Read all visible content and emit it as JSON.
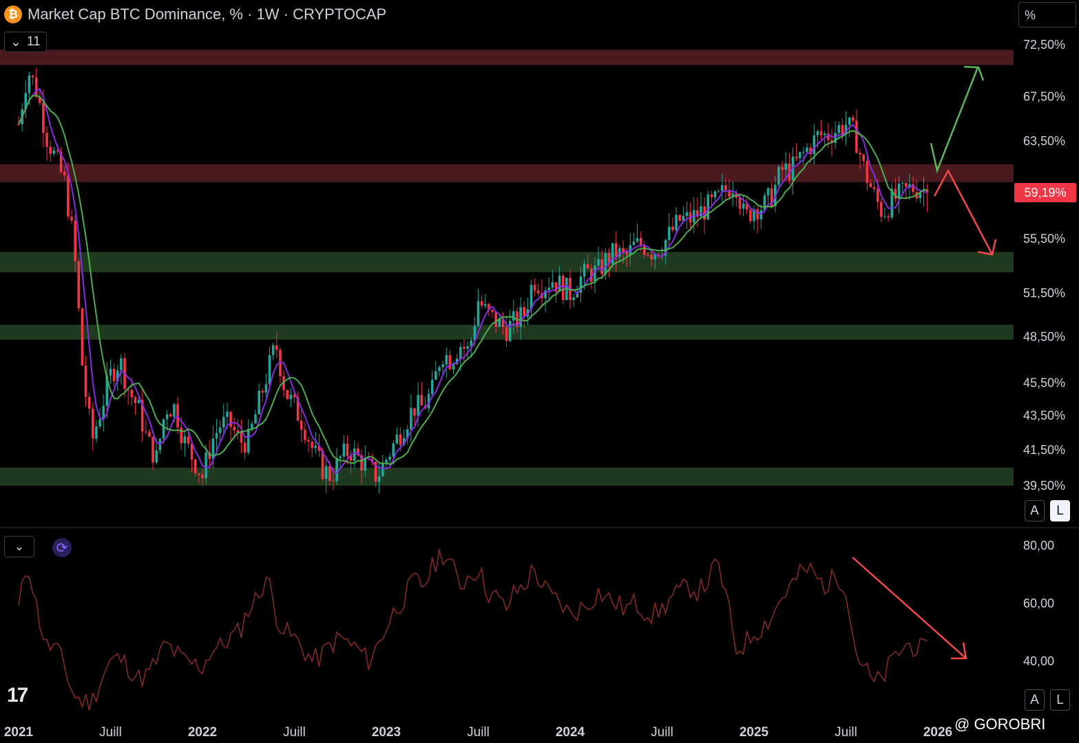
{
  "header": {
    "title": "Market Cap BTC Dominance, % · 1W · CRYPTOCAP",
    "btc_symbol": "₿",
    "indicator_count": "11",
    "scale_mode": "%"
  },
  "price_label": "59,19%",
  "scale_buttons": {
    "auto": "A",
    "log": "L"
  },
  "watermark": "@ GOROBRI",
  "colors": {
    "bull": "#26a69a",
    "bear": "#f23645",
    "ma_fast": "#8a2be2",
    "ma_slow": "#4caf50",
    "resistance_zone": "#4a1a1e",
    "support_zone": "#1f3a1f",
    "rsi_line": "#8b2a2a"
  },
  "chart_data": [
    {
      "type": "candlestick",
      "title": "Market Cap BTC Dominance, % · 1W · CRYPTOCAP",
      "x_range": [
        "2021-01",
        "2026-01"
      ],
      "y_axis_ticks": [
        "72,50%",
        "67,50%",
        "63,50%",
        "55,50%",
        "51,50%",
        "48,50%",
        "45,50%",
        "43,50%",
        "41,50%",
        "39,50%"
      ],
      "y_axis_values": [
        72.5,
        67.5,
        63.5,
        55.5,
        51.5,
        48.5,
        45.5,
        43.5,
        41.5,
        39.5
      ],
      "x_axis_ticks": [
        {
          "label": "2021",
          "year": true,
          "t": 2021.0
        },
        {
          "label": "Juill",
          "year": false,
          "t": 2021.5
        },
        {
          "label": "2022",
          "year": true,
          "t": 2022.0
        },
        {
          "label": "Juill",
          "year": false,
          "t": 2022.5
        },
        {
          "label": "2023",
          "year": true,
          "t": 2023.0
        },
        {
          "label": "Juill",
          "year": false,
          "t": 2023.5
        },
        {
          "label": "2024",
          "year": true,
          "t": 2024.0
        },
        {
          "label": "Juill",
          "year": false,
          "t": 2024.5
        },
        {
          "label": "2025",
          "year": true,
          "t": 2025.0
        },
        {
          "label": "Juill",
          "year": false,
          "t": 2025.5
        },
        {
          "label": "2026",
          "year": true,
          "t": 2026.0
        }
      ],
      "last_value": 59.19,
      "close_path": [
        [
          2021.0,
          65
        ],
        [
          2021.05,
          70
        ],
        [
          2021.1,
          68
        ],
        [
          2021.15,
          64
        ],
        [
          2021.2,
          62
        ],
        [
          2021.25,
          60
        ],
        [
          2021.3,
          55
        ],
        [
          2021.35,
          46
        ],
        [
          2021.4,
          42
        ],
        [
          2021.45,
          44
        ],
        [
          2021.5,
          46
        ],
        [
          2021.55,
          47
        ],
        [
          2021.6,
          45
        ],
        [
          2021.65,
          44
        ],
        [
          2021.7,
          42
        ],
        [
          2021.75,
          41
        ],
        [
          2021.8,
          44
        ],
        [
          2021.85,
          44
        ],
        [
          2021.9,
          42
        ],
        [
          2021.95,
          41
        ],
        [
          2022.0,
          40
        ],
        [
          2022.05,
          42
        ],
        [
          2022.1,
          43
        ],
        [
          2022.15,
          43
        ],
        [
          2022.2,
          42
        ],
        [
          2022.25,
          42
        ],
        [
          2022.3,
          44
        ],
        [
          2022.35,
          46
        ],
        [
          2022.4,
          48
        ],
        [
          2022.45,
          45
        ],
        [
          2022.5,
          44
        ],
        [
          2022.55,
          43
        ],
        [
          2022.6,
          41.5
        ],
        [
          2022.65,
          40.5
        ],
        [
          2022.7,
          40
        ],
        [
          2022.75,
          41
        ],
        [
          2022.8,
          41.5
        ],
        [
          2022.85,
          41
        ],
        [
          2022.9,
          40.5
        ],
        [
          2022.95,
          40
        ],
        [
          2023.0,
          41
        ],
        [
          2023.05,
          42
        ],
        [
          2023.1,
          43
        ],
        [
          2023.15,
          44
        ],
        [
          2023.2,
          44
        ],
        [
          2023.25,
          45
        ],
        [
          2023.3,
          47.5
        ],
        [
          2023.35,
          47
        ],
        [
          2023.4,
          48
        ],
        [
          2023.45,
          47.5
        ],
        [
          2023.5,
          51
        ],
        [
          2023.55,
          50
        ],
        [
          2023.6,
          49.5
        ],
        [
          2023.65,
          49
        ],
        [
          2023.7,
          49.5
        ],
        [
          2023.75,
          50
        ],
        [
          2023.8,
          52.5
        ],
        [
          2023.85,
          52
        ],
        [
          2023.9,
          52.5
        ],
        [
          2023.95,
          52
        ],
        [
          2024.0,
          51.5
        ],
        [
          2024.05,
          52.5
        ],
        [
          2024.1,
          53
        ],
        [
          2024.15,
          53
        ],
        [
          2024.2,
          54
        ],
        [
          2024.25,
          54.5
        ],
        [
          2024.3,
          54
        ],
        [
          2024.35,
          55
        ],
        [
          2024.4,
          55
        ],
        [
          2024.45,
          54.5
        ],
        [
          2024.5,
          55
        ],
        [
          2024.55,
          56
        ],
        [
          2024.6,
          57
        ],
        [
          2024.65,
          57
        ],
        [
          2024.7,
          57.5
        ],
        [
          2024.75,
          58
        ],
        [
          2024.8,
          58.5
        ],
        [
          2024.85,
          59.5
        ],
        [
          2024.9,
          60
        ],
        [
          2024.95,
          57
        ],
        [
          2025.0,
          58
        ],
        [
          2025.05,
          58
        ],
        [
          2025.1,
          59
        ],
        [
          2025.15,
          61
        ],
        [
          2025.2,
          61
        ],
        [
          2025.25,
          62
        ],
        [
          2025.3,
          63
        ],
        [
          2025.35,
          64
        ],
        [
          2025.4,
          64
        ],
        [
          2025.45,
          64.5
        ],
        [
          2025.5,
          65
        ],
        [
          2025.55,
          64
        ],
        [
          2025.6,
          61
        ],
        [
          2025.65,
          59
        ],
        [
          2025.7,
          57.5
        ],
        [
          2025.75,
          58.5
        ],
        [
          2025.8,
          59
        ],
        [
          2025.85,
          59.5
        ],
        [
          2025.9,
          59.5
        ],
        [
          2025.95,
          59.19
        ]
      ],
      "zones": [
        {
          "kind": "resistance",
          "from": 70.5,
          "to": 72.0
        },
        {
          "kind": "resistance",
          "from": 60.0,
          "to": 61.5
        },
        {
          "kind": "support",
          "from": 53.0,
          "to": 54.5
        },
        {
          "kind": "support",
          "from": 48.3,
          "to": 49.3
        },
        {
          "kind": "support",
          "from": 39.5,
          "to": 40.5
        }
      ]
    },
    {
      "type": "line",
      "title": "",
      "y_axis_ticks": [
        "80,00",
        "60,00",
        "40,00"
      ],
      "y_axis_values": [
        80,
        60,
        40
      ],
      "ylim": [
        25,
        85
      ],
      "series": [
        {
          "values_path": [
            [
              2021.0,
              58
            ],
            [
              2021.05,
              75
            ],
            [
              2021.1,
              58
            ],
            [
              2021.15,
              45
            ],
            [
              2021.2,
              45
            ],
            [
              2021.25,
              38
            ],
            [
              2021.3,
              28
            ],
            [
              2021.35,
              26
            ],
            [
              2021.4,
              26
            ],
            [
              2021.45,
              34
            ],
            [
              2021.5,
              40
            ],
            [
              2021.55,
              41
            ],
            [
              2021.6,
              38
            ],
            [
              2021.65,
              34
            ],
            [
              2021.7,
              35
            ],
            [
              2021.75,
              40
            ],
            [
              2021.8,
              46
            ],
            [
              2021.85,
              43
            ],
            [
              2021.9,
              40
            ],
            [
              2021.95,
              39
            ],
            [
              2022.0,
              38
            ],
            [
              2022.05,
              44
            ],
            [
              2022.1,
              45
            ],
            [
              2022.15,
              48
            ],
            [
              2022.2,
              50
            ],
            [
              2022.25,
              58
            ],
            [
              2022.3,
              62
            ],
            [
              2022.35,
              70
            ],
            [
              2022.4,
              56
            ],
            [
              2022.45,
              50
            ],
            [
              2022.5,
              48
            ],
            [
              2022.55,
              44
            ],
            [
              2022.6,
              40
            ],
            [
              2022.65,
              42
            ],
            [
              2022.7,
              46
            ],
            [
              2022.75,
              48
            ],
            [
              2022.8,
              46
            ],
            [
              2022.85,
              44
            ],
            [
              2022.9,
              40
            ],
            [
              2022.95,
              45
            ],
            [
              2023.0,
              52
            ],
            [
              2023.05,
              58
            ],
            [
              2023.1,
              62
            ],
            [
              2023.15,
              68
            ],
            [
              2023.2,
              66
            ],
            [
              2023.25,
              72
            ],
            [
              2023.3,
              78
            ],
            [
              2023.35,
              74
            ],
            [
              2023.4,
              66
            ],
            [
              2023.45,
              70
            ],
            [
              2023.5,
              72
            ],
            [
              2023.55,
              64
            ],
            [
              2023.6,
              62
            ],
            [
              2023.65,
              58
            ],
            [
              2023.7,
              64
            ],
            [
              2023.75,
              66
            ],
            [
              2023.8,
              72
            ],
            [
              2023.85,
              66
            ],
            [
              2023.9,
              62
            ],
            [
              2023.95,
              60
            ],
            [
              2024.0,
              56
            ],
            [
              2024.05,
              58
            ],
            [
              2024.1,
              60
            ],
            [
              2024.15,
              64
            ],
            [
              2024.2,
              62
            ],
            [
              2024.25,
              60
            ],
            [
              2024.3,
              58
            ],
            [
              2024.35,
              60
            ],
            [
              2024.4,
              58
            ],
            [
              2024.45,
              56
            ],
            [
              2024.5,
              58
            ],
            [
              2024.55,
              62
            ],
            [
              2024.6,
              64
            ],
            [
              2024.65,
              66
            ],
            [
              2024.7,
              64
            ],
            [
              2024.75,
              68
            ],
            [
              2024.8,
              74
            ],
            [
              2024.85,
              62
            ],
            [
              2024.9,
              44
            ],
            [
              2024.95,
              46
            ],
            [
              2025.0,
              50
            ],
            [
              2025.05,
              52
            ],
            [
              2025.1,
              56
            ],
            [
              2025.15,
              62
            ],
            [
              2025.2,
              66
            ],
            [
              2025.25,
              70
            ],
            [
              2025.3,
              72
            ],
            [
              2025.35,
              68
            ],
            [
              2025.4,
              66
            ],
            [
              2025.45,
              70
            ],
            [
              2025.5,
              66
            ],
            [
              2025.55,
              44
            ],
            [
              2025.6,
              38
            ],
            [
              2025.65,
              32
            ],
            [
              2025.7,
              34
            ],
            [
              2025.75,
              40
            ],
            [
              2025.8,
              44
            ],
            [
              2025.85,
              46
            ],
            [
              2025.9,
              44
            ],
            [
              2025.95,
              43
            ]
          ]
        }
      ]
    }
  ]
}
